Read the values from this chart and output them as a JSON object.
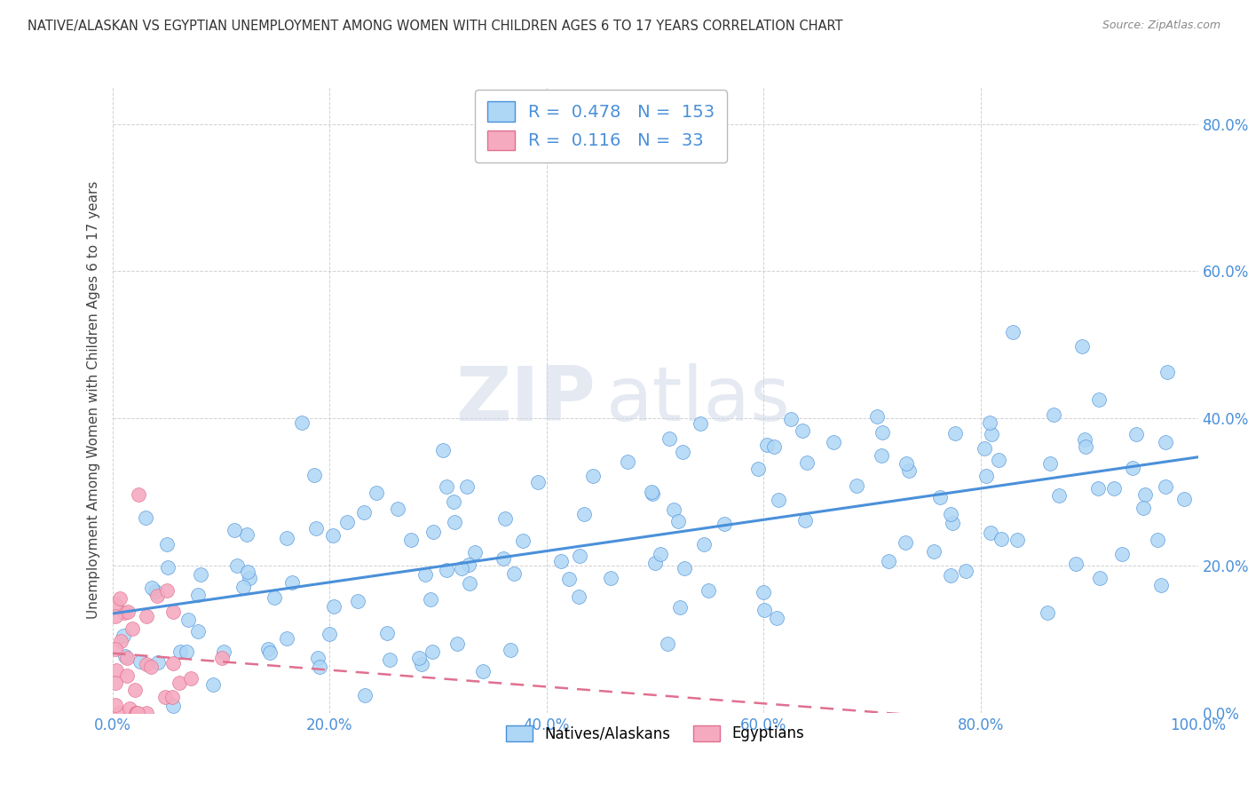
{
  "title": "NATIVE/ALASKAN VS EGYPTIAN UNEMPLOYMENT AMONG WOMEN WITH CHILDREN AGES 6 TO 17 YEARS CORRELATION CHART",
  "source": "Source: ZipAtlas.com",
  "ylabel": "Unemployment Among Women with Children Ages 6 to 17 years",
  "xlim": [
    0,
    1.0
  ],
  "ylim": [
    0,
    0.85
  ],
  "xticks": [
    0.0,
    0.2,
    0.4,
    0.6,
    0.8,
    1.0
  ],
  "xticklabels": [
    "0.0%",
    "20.0%",
    "40.0%",
    "60.0%",
    "80.0%",
    "100.0%"
  ],
  "yticks": [
    0.0,
    0.2,
    0.4,
    0.6,
    0.8
  ],
  "yticklabels": [
    "0.0%",
    "20.0%",
    "40.0%",
    "60.0%",
    "80.0%"
  ],
  "native_R": 0.478,
  "native_N": 153,
  "egyptian_R": 0.116,
  "egyptian_N": 33,
  "native_color": "#aed6f5",
  "egyptian_color": "#f5aac0",
  "native_line_color": "#4a90d9",
  "egyptian_line_color": "#e07090",
  "watermark_zip": "ZIP",
  "watermark_atlas": "atlas",
  "legend_native_label": "Natives/Alaskans",
  "legend_egyptian_label": "Egyptians",
  "background_color": "#ffffff",
  "grid_color": "#cccccc",
  "tick_color": "#4a90d9",
  "legend_R_color": "#4a90d9",
  "legend_N_color": "#4a90d9"
}
